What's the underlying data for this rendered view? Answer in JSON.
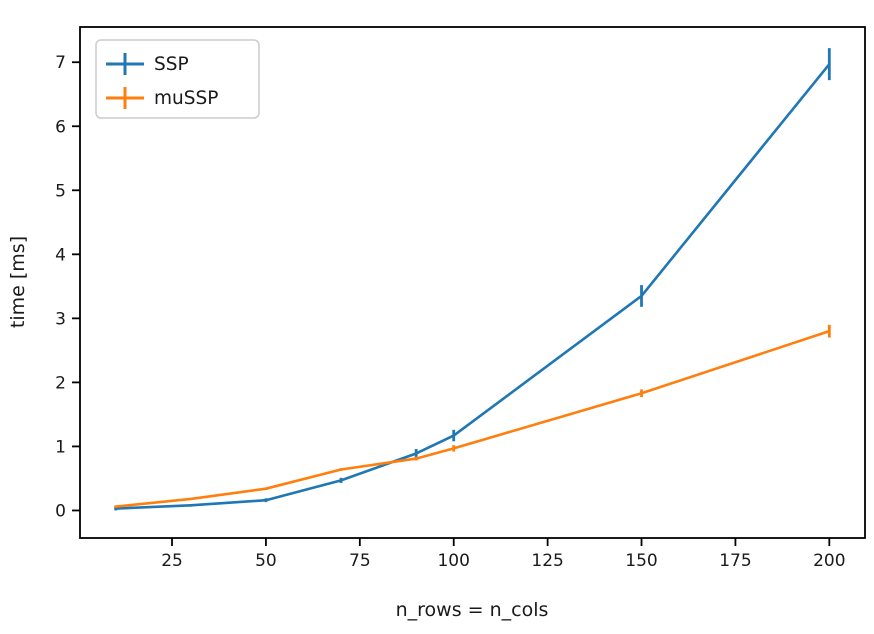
{
  "figure": {
    "background": "#ffffff",
    "spine_color": "#000000",
    "tick_color": "#000000",
    "text_color": "#1a1a1a",
    "legend_border_color": "#cccccc",
    "legend_background": "#ffffff"
  },
  "chart_data": {
    "type": "line",
    "title": "",
    "xlabel": "n_rows = n_cols",
    "ylabel": "time [ms]",
    "xlim": [
      0.5,
      209.5
    ],
    "ylim": [
      -0.43,
      7.55
    ],
    "xticks": [
      25,
      50,
      75,
      100,
      125,
      150,
      175,
      200
    ],
    "yticks": [
      0,
      1,
      2,
      3,
      4,
      5,
      6,
      7
    ],
    "grid": false,
    "legend_position": "upper-left",
    "error_bars": true,
    "x": [
      10,
      30,
      50,
      70,
      90,
      100,
      150,
      200
    ],
    "series": [
      {
        "name": "SSP",
        "color": "#1f77b4",
        "values": [
          0.03,
          0.08,
          0.16,
          0.47,
          0.89,
          1.17,
          3.35,
          6.97
        ],
        "yerr": [
          0.03,
          0.02,
          0.03,
          0.04,
          0.07,
          0.09,
          0.17,
          0.25
        ]
      },
      {
        "name": "muSSP",
        "color": "#ff7f0e",
        "values": [
          0.06,
          0.18,
          0.34,
          0.64,
          0.81,
          0.97,
          1.83,
          2.8
        ],
        "yerr": [
          0.02,
          0.01,
          0.02,
          0.02,
          0.03,
          0.05,
          0.06,
          0.1
        ]
      }
    ]
  }
}
